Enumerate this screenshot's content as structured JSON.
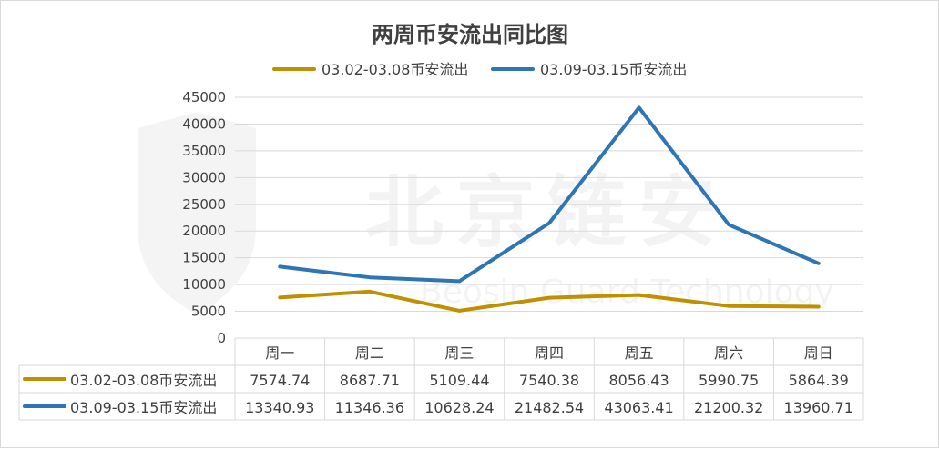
{
  "chart_data": {
    "type": "line",
    "title": "两周币安流出同比图",
    "categories": [
      "周一",
      "周二",
      "周三",
      "周四",
      "周五",
      "周六",
      "周日"
    ],
    "series": [
      {
        "name": "03.02-03.08币安流出",
        "color": "#bf9000",
        "values": [
          7574.74,
          8687.71,
          5109.44,
          7540.38,
          8056.43,
          5990.75,
          5864.39
        ],
        "value_labels": [
          "7574.74",
          "8687.71",
          "5109.44",
          "7540.38",
          "8056.43",
          "5990.75",
          "5864.39"
        ]
      },
      {
        "name": "03.09-03.15币安流出",
        "color": "#2e75b6",
        "values": [
          13340.93,
          11346.36,
          10628.24,
          21482.54,
          43063.41,
          21200.32,
          13960.71
        ],
        "value_labels": [
          "13340.93",
          "11346.36",
          "10628.24",
          "21482.54",
          "43063.41",
          "21200.32",
          "13960.71"
        ]
      }
    ],
    "ylim": [
      0,
      45000
    ],
    "yticks": [
      0,
      5000,
      10000,
      15000,
      20000,
      25000,
      30000,
      35000,
      40000,
      45000
    ],
    "legend": "top",
    "grid": true,
    "data_table": true
  },
  "watermark": {
    "text": "北京链安",
    "subtext": "Beosin  Guard  Technology",
    "icon": "shield-icon"
  }
}
